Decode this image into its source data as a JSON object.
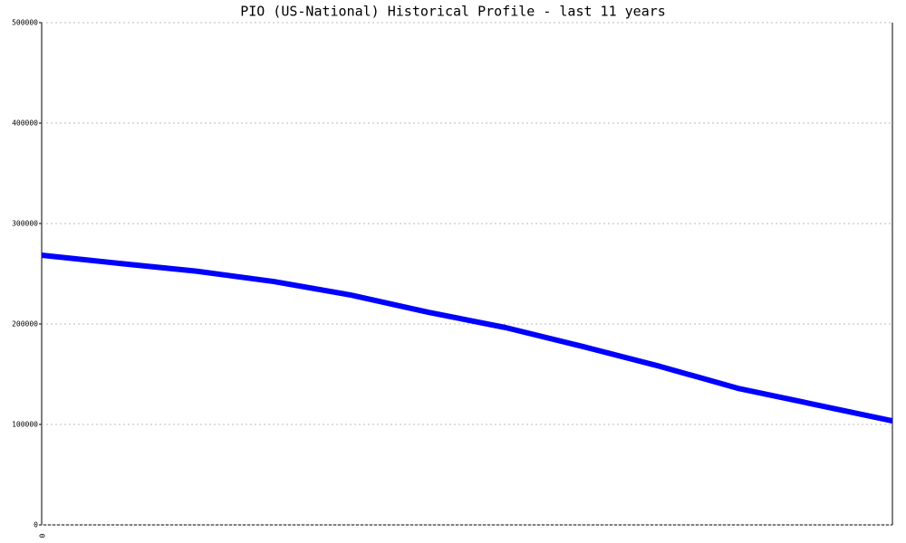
{
  "chart_data": {
    "type": "line",
    "title": "PIO (US-National) Historical Profile - last 11 years",
    "categories": [
      "0",
      null,
      null,
      null,
      null,
      null,
      null,
      null,
      null,
      null,
      null,
      null
    ],
    "series": [
      {
        "name": "PIO",
        "color": "#0000ff",
        "values": [
          268500,
          260400,
          252600,
          242300,
          228800,
          211700,
          196400,
          177500,
          157700,
          136000,
          119800,
          103600
        ]
      }
    ],
    "ylim": [
      0,
      500000
    ],
    "yticks": [
      0,
      100000,
      200000,
      300000,
      400000,
      500000
    ],
    "grid": true
  }
}
